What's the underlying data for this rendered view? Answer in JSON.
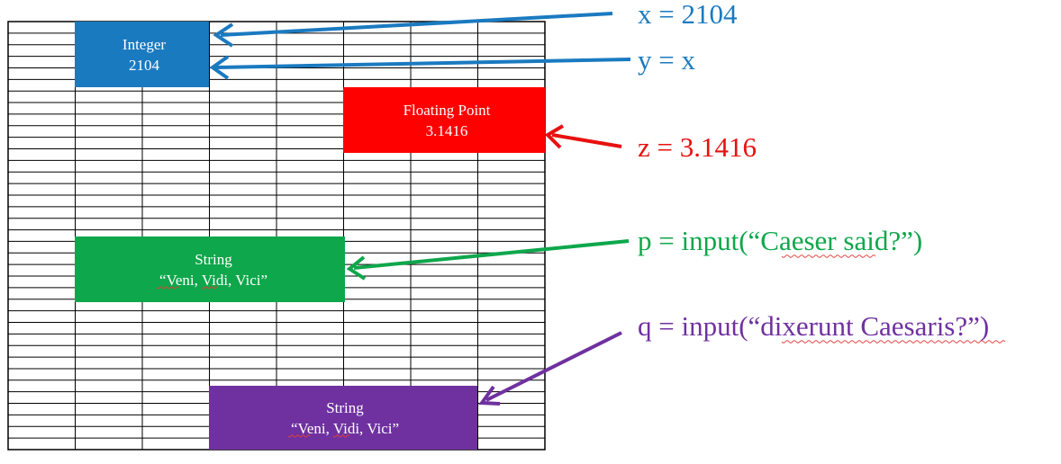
{
  "boxes": {
    "integer": {
      "type": "Integer",
      "value": "2104",
      "color": "#1a7ac0"
    },
    "float": {
      "type": "Floating Point",
      "value": "3.1416",
      "color": "#fe0000"
    },
    "string1": {
      "type": "String",
      "value": "“Veni, Vidi, Vici”",
      "color": "#0ea74b"
    },
    "string2": {
      "type": "String",
      "value": "“Veni, Vidi, Vici”",
      "color": "#6f31a0"
    }
  },
  "statements": {
    "x_assign": {
      "text": "x = 2104",
      "color": "#1a7ac0"
    },
    "y_assign": {
      "text": "y = x",
      "color": "#1a7ac0"
    },
    "z_assign": {
      "text": "z = 3.1416",
      "color": "#e81010"
    },
    "p_assign": {
      "text": "p = input(“Caeser said?”)",
      "color": "#0ea74b"
    },
    "q_assign": {
      "text": "q = input(“dixerunt Caesaris?”)",
      "color": "#6f31a0"
    }
  },
  "grid": {
    "rows": 37,
    "cols": 8,
    "line_color": "#000000"
  }
}
